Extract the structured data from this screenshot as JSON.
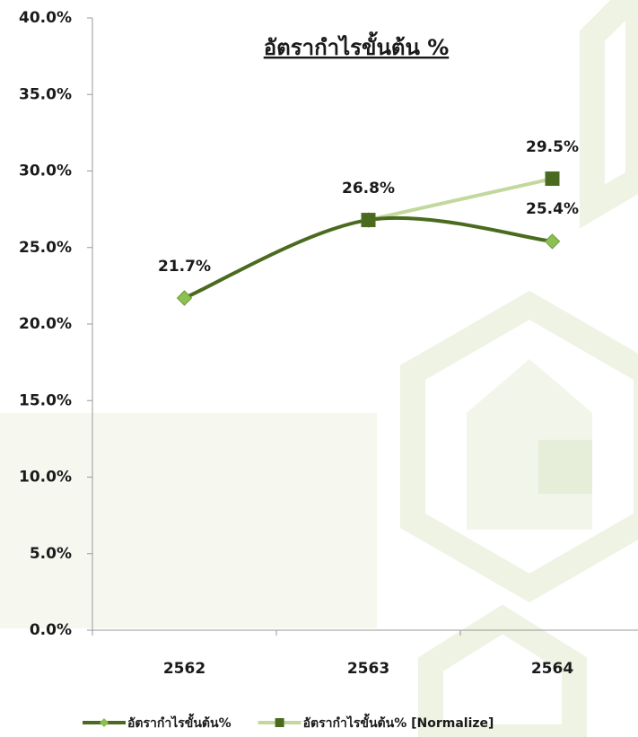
{
  "chart_data": {
    "type": "line",
    "title": "อัตรากำไรขั้นต้น %",
    "categories": [
      "2562",
      "2563",
      "2564"
    ],
    "series": [
      {
        "name": "อัตรากำไรขั้นต้น%",
        "color": "#4a6b1f",
        "marker": "diamond",
        "marker_color": "#8cc152",
        "values": [
          21.7,
          26.8,
          25.4
        ],
        "value_labels": [
          "21.7%",
          "26.8%",
          "25.4%"
        ]
      },
      {
        "name": "อัตรากำไรขั้นต้น% [Normalize]",
        "color": "#c3d89d",
        "marker": "square",
        "marker_color": "#4a6b1f",
        "values": [
          null,
          26.8,
          29.5
        ],
        "value_labels": [
          null,
          null,
          "29.5%"
        ]
      }
    ],
    "ylim": [
      0,
      40
    ],
    "yticks": [
      {
        "value": 0,
        "label": "0.0%"
      },
      {
        "value": 5,
        "label": "5.0%"
      },
      {
        "value": 10,
        "label": "10.0%"
      },
      {
        "value": 15,
        "label": "15.0%"
      },
      {
        "value": 20,
        "label": "20.0%"
      },
      {
        "value": 25,
        "label": "25.0%"
      },
      {
        "value": 30,
        "label": "30.0%"
      },
      {
        "value": 35,
        "label": "35.0%"
      },
      {
        "value": 40,
        "label": "40.0%"
      }
    ],
    "grid": false
  }
}
